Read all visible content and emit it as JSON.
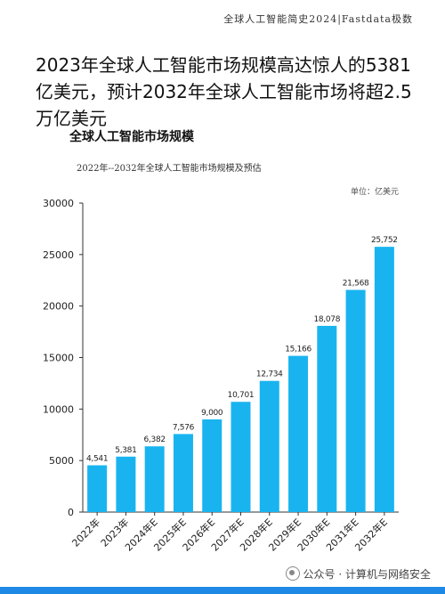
{
  "header": {
    "text": "全球人工智能简史2024|Fastdata极数"
  },
  "headline": "2023年全球人工智能市场规模高达惊人的5381亿美元，预计2032年全球人工智能市场将超2.5万亿美元",
  "watermark": {
    "text": "公众号 · 计算机与网络安全"
  },
  "colors": {
    "bar": "#19b4f0",
    "axis": "#333333",
    "bottom_bar": "#1e88e5"
  },
  "chart_data": {
    "type": "bar",
    "title": "全球人工智能市场规模",
    "subtitle": "2022年--2032年全球人工智能市场规模及预估",
    "unit": "单位：亿美元",
    "categories": [
      "2022年",
      "2023年",
      "2024年E",
      "2025年E",
      "2026年E",
      "2027年E",
      "2028年E",
      "2029年E",
      "2030年E",
      "2031年E",
      "2032年E"
    ],
    "values": [
      4541,
      5381,
      6382,
      7576,
      9000,
      10701,
      12734,
      15166,
      18078,
      21568,
      25752
    ],
    "value_labels": [
      "4,541",
      "5,381",
      "6,382",
      "7,576",
      "9,000",
      "10,701",
      "12,734",
      "15,166",
      "18,078",
      "21,568",
      "25,752"
    ],
    "yticks": [
      0,
      5000,
      10000,
      15000,
      20000,
      25000,
      30000
    ],
    "ylim": [
      0,
      30000
    ],
    "grid": false,
    "legend": "none"
  }
}
